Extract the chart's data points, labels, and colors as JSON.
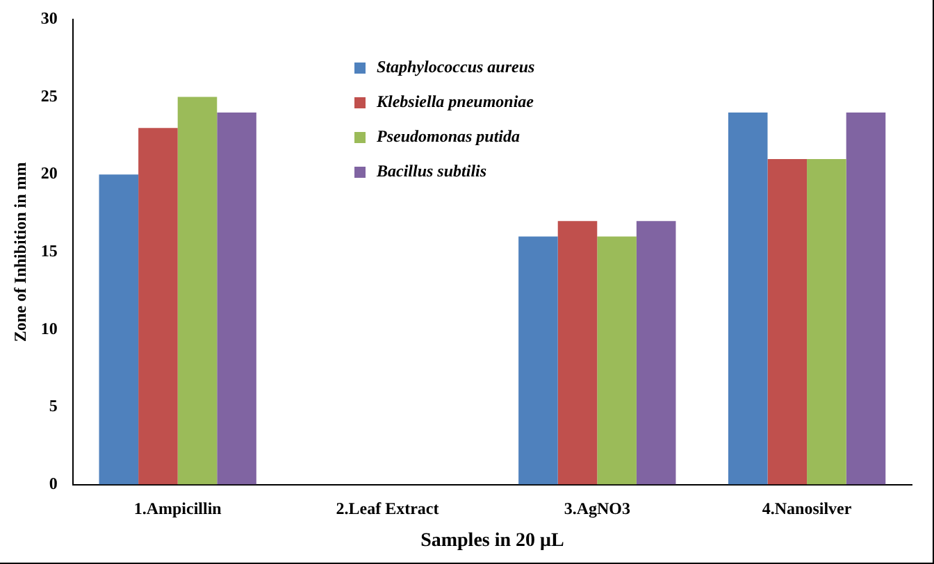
{
  "chart_data": {
    "type": "bar",
    "xlabel": "Samples in 20 μL",
    "ylabel": "Zone of Inhibition in mm",
    "categories": [
      "1.Ampicillin",
      "2.Leaf Extract",
      "3.AgNO3",
      "4.Nanosilver"
    ],
    "series": [
      {
        "name": "Staphylococcus aureus",
        "color": "#4f81bd",
        "values": [
          20,
          0,
          16,
          24
        ]
      },
      {
        "name": "Klebsiella pneumoniae",
        "color": "#c0504d",
        "values": [
          23,
          0,
          17,
          21
        ]
      },
      {
        "name": "Pseudomonas putida",
        "color": "#9bbb59",
        "values": [
          25,
          0,
          16,
          21
        ]
      },
      {
        "name": "Bacillus subtilis",
        "color": "#8064a2",
        "values": [
          24,
          0,
          17,
          24
        ]
      }
    ],
    "ylim": [
      0,
      30
    ],
    "yticks": [
      0,
      5,
      10,
      15,
      20,
      25,
      30
    ],
    "grid": false,
    "legend": "top"
  }
}
